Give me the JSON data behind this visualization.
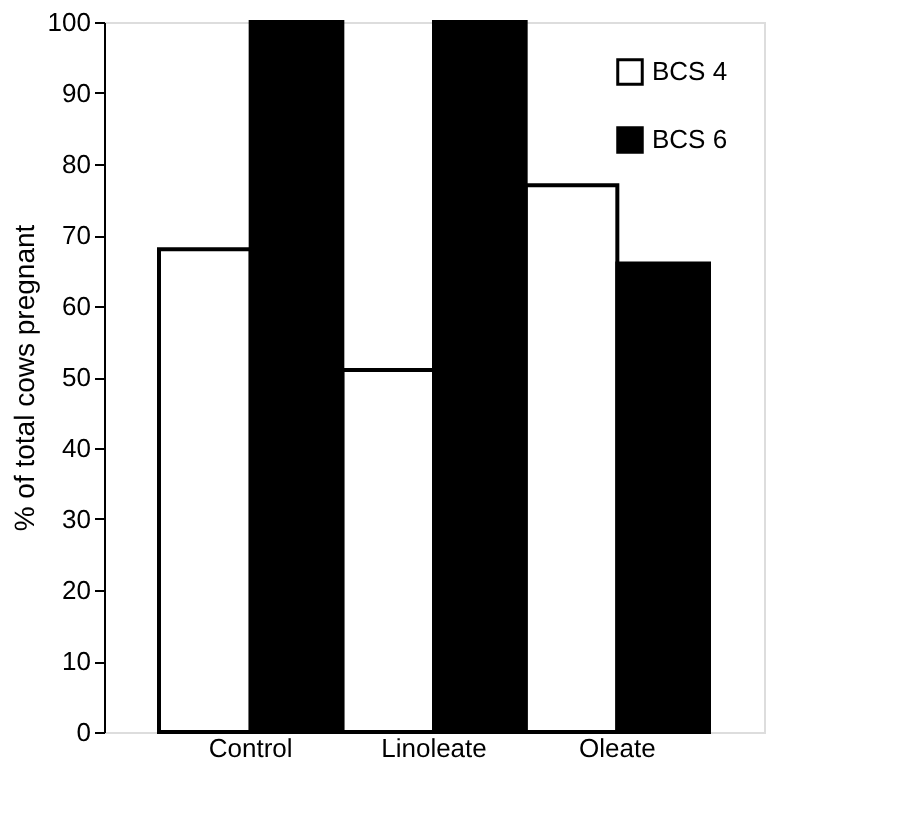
{
  "chart_data": {
    "type": "bar",
    "ylabel": "% of total cows pregnant",
    "categories": [
      "Control",
      "Linoleate",
      "Oleate"
    ],
    "series": [
      {
        "name": "BCS 4",
        "color": "#ffffff",
        "values": [
          68,
          51,
          77
        ]
      },
      {
        "name": "BCS 6",
        "color": "#000000",
        "values": [
          100,
          100,
          66
        ]
      }
    ],
    "ylim": [
      0,
      100
    ],
    "yticks": [
      0,
      10,
      20,
      30,
      40,
      50,
      60,
      70,
      80,
      90,
      100
    ],
    "grid": false,
    "legend": "top right"
  }
}
